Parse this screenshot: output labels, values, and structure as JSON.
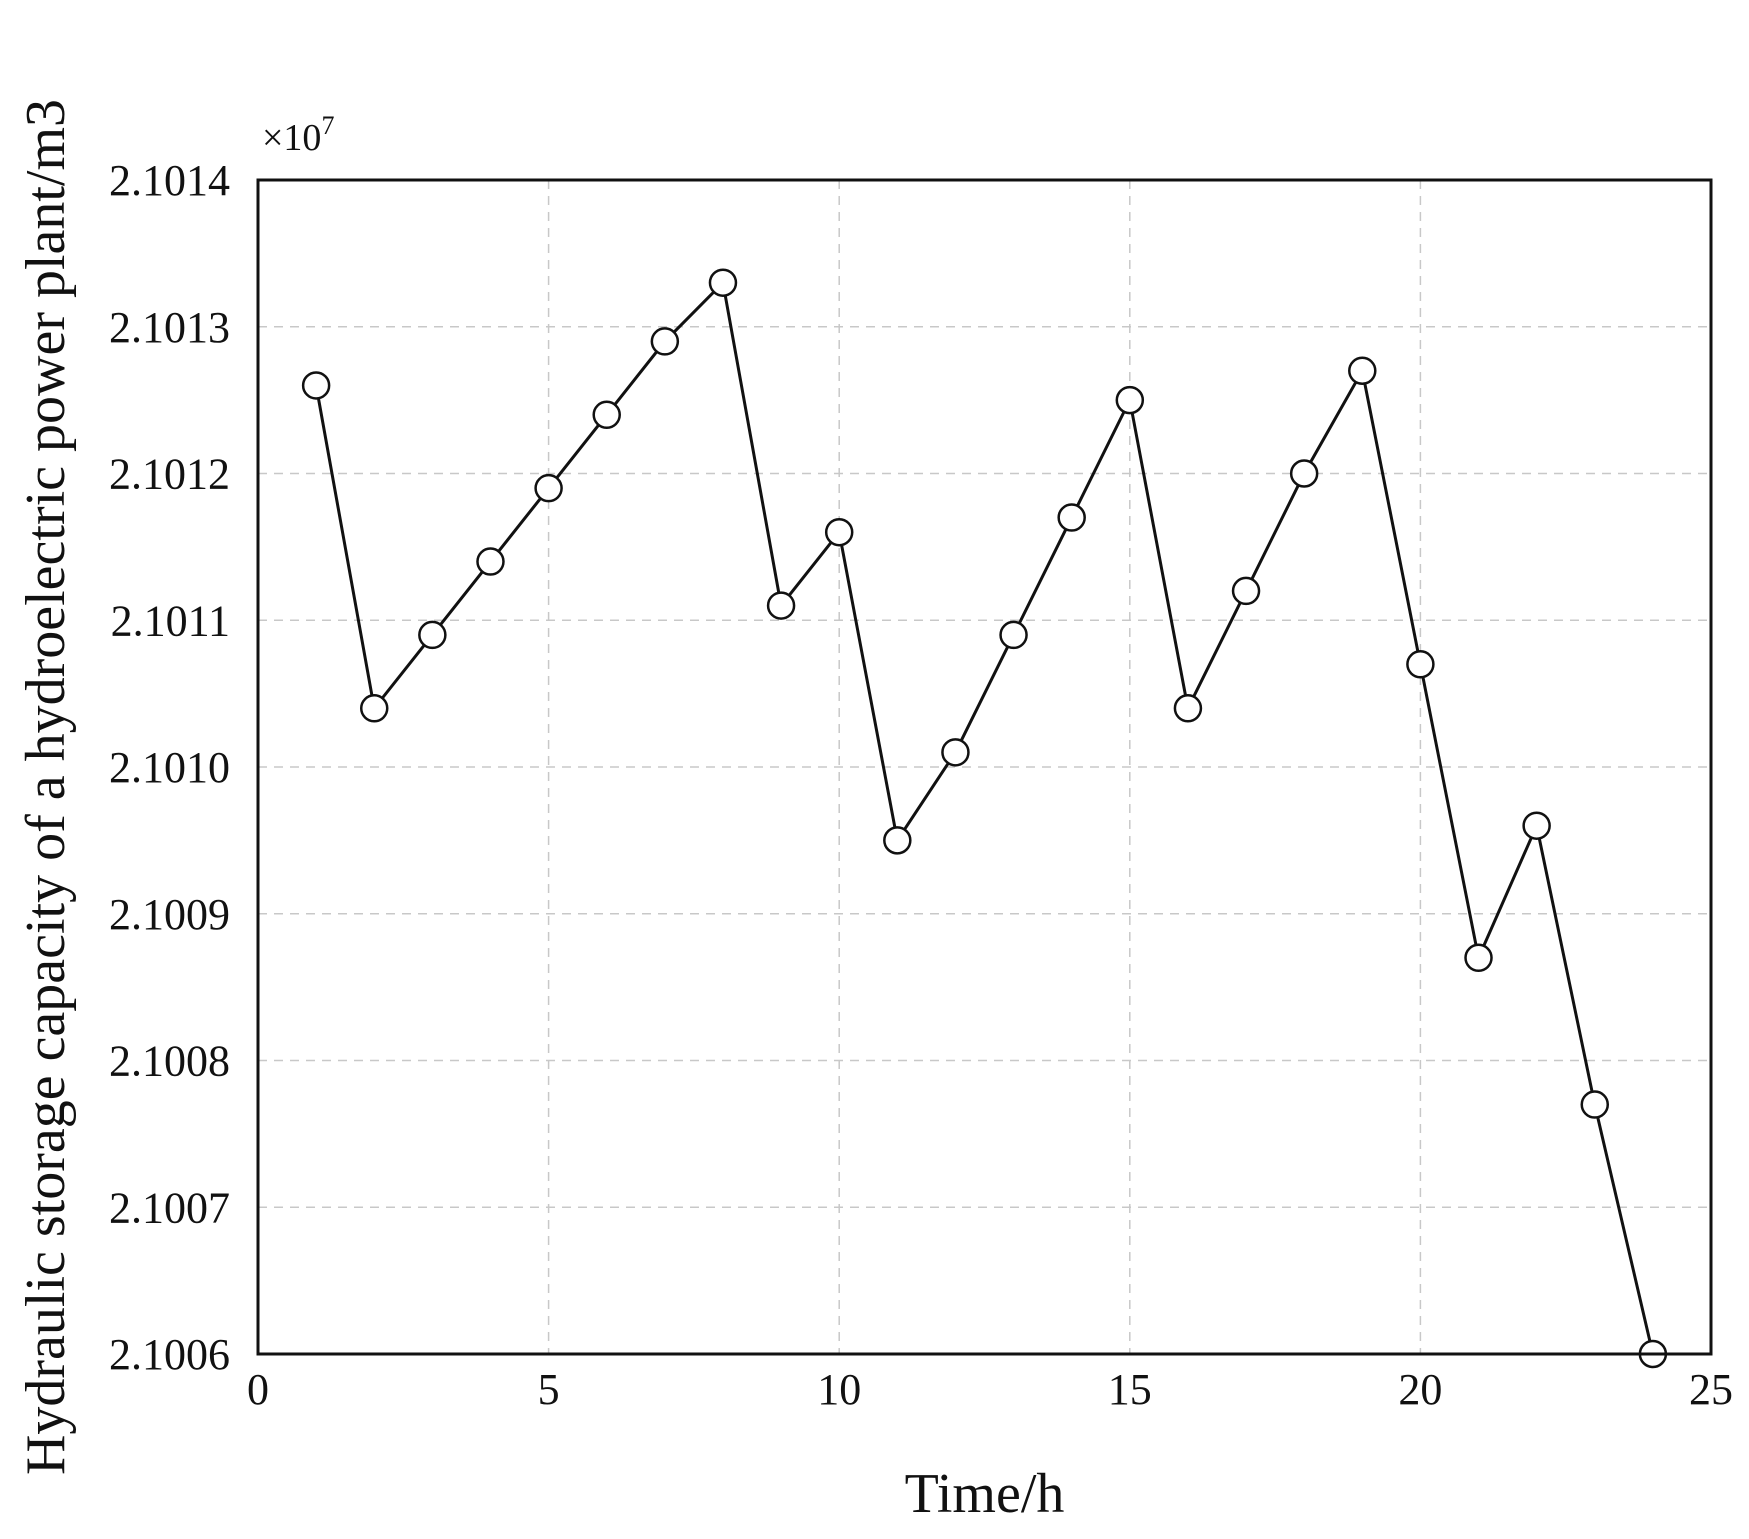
{
  "chart_data": {
    "type": "line",
    "xlabel": "Time/h",
    "ylabel": "Hydraulic storage capacity of a hydroelectric power plant/m3",
    "y_multiplier_label": "×10",
    "y_multiplier_exponent": "7",
    "xlim": [
      0,
      25
    ],
    "ylim": [
      2.1006,
      2.1014
    ],
    "x_ticks": [
      0,
      5,
      10,
      15,
      20,
      25
    ],
    "x_tick_labels": [
      "0",
      "5",
      "10",
      "15",
      "20",
      "25"
    ],
    "y_ticks": [
      2.1006,
      2.1007,
      2.1008,
      2.1009,
      2.101,
      2.1011,
      2.1012,
      2.1013,
      2.1014
    ],
    "y_tick_labels": [
      "2.1006",
      "2.1007",
      "2.1008",
      "2.1009",
      "2.1010",
      "2.1011",
      "2.1012",
      "2.1013",
      "2.1014"
    ],
    "grid": true,
    "marker": "open-circle",
    "colors": {
      "line": "#111111",
      "marker_fill": "#ffffff",
      "grid": "#c8c8c8"
    },
    "series": [
      {
        "x": [
          1,
          2,
          3,
          4,
          5,
          6,
          7,
          8,
          9,
          10,
          11,
          12,
          13,
          14,
          15,
          16,
          17,
          18,
          19,
          20,
          21,
          22,
          23,
          24
        ],
        "y": [
          2.10126,
          2.10104,
          2.10109,
          2.10114,
          2.10119,
          2.10124,
          2.10129,
          2.10133,
          2.10111,
          2.10116,
          2.10095,
          2.10101,
          2.10109,
          2.10117,
          2.10125,
          2.10104,
          2.10112,
          2.1012,
          2.10127,
          2.10107,
          2.10087,
          2.10096,
          2.10077,
          2.1006
        ]
      }
    ]
  }
}
